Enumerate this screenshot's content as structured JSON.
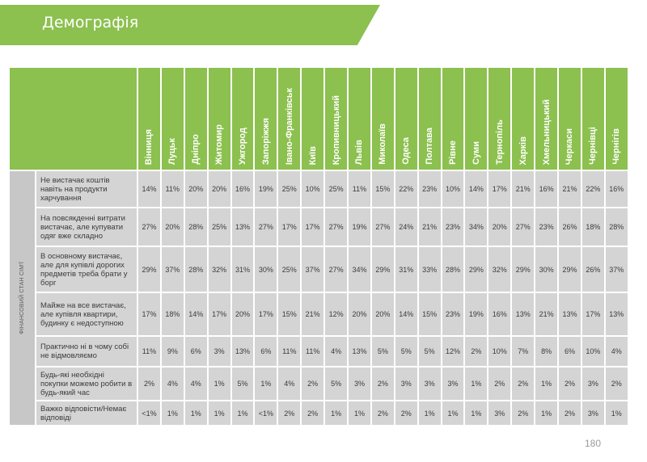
{
  "header": {
    "title": "Демографія"
  },
  "table": {
    "section_label": "ФІНАНСОВИЙ СТАН СІМ'Ї",
    "columns": [
      "Вінниця",
      "Луцьк",
      "Дніпро",
      "Житомир",
      "Ужгород",
      "Запоріжжя",
      "Івано-Франківськ",
      "Київ",
      "Кропивницький",
      "Львів",
      "Миколаїв",
      "Одеса",
      "Полтава",
      "Рівне",
      "Суми",
      "Тернопіль",
      "Харків",
      "Хмельницький",
      "Черкаси",
      "Чернівці",
      "Чернігів"
    ],
    "rows": [
      {
        "label": "Не вистачає коштів навіть на продукти харчування",
        "values": [
          "14%",
          "11%",
          "20%",
          "20%",
          "16%",
          "19%",
          "25%",
          "10%",
          "25%",
          "11%",
          "15%",
          "22%",
          "23%",
          "10%",
          "14%",
          "17%",
          "21%",
          "16%",
          "21%",
          "22%",
          "16%"
        ]
      },
      {
        "label": "На повсякденні витрати вистачає, але купувати одяг вже складно",
        "values": [
          "27%",
          "20%",
          "28%",
          "25%",
          "13%",
          "27%",
          "17%",
          "17%",
          "27%",
          "19%",
          "27%",
          "24%",
          "21%",
          "23%",
          "34%",
          "20%",
          "27%",
          "23%",
          "26%",
          "18%",
          "28%"
        ]
      },
      {
        "label": "В основному вистачає, але для купівлі дорогих предметів треба брати у борг",
        "values": [
          "29%",
          "37%",
          "28%",
          "32%",
          "31%",
          "30%",
          "25%",
          "37%",
          "27%",
          "34%",
          "29%",
          "31%",
          "33%",
          "28%",
          "29%",
          "32%",
          "29%",
          "30%",
          "29%",
          "26%",
          "37%"
        ]
      },
      {
        "label": "Майже на все вистачає, але купівля квартири, будинку є недоступною",
        "values": [
          "17%",
          "18%",
          "14%",
          "17%",
          "20%",
          "17%",
          "15%",
          "21%",
          "12%",
          "20%",
          "20%",
          "14%",
          "15%",
          "23%",
          "19%",
          "16%",
          "13%",
          "21%",
          "13%",
          "17%",
          "13%"
        ]
      },
      {
        "label": "Практично ні в чому собі не відмовляємо",
        "values": [
          "11%",
          "9%",
          "6%",
          "3%",
          "13%",
          "6%",
          "11%",
          "11%",
          "4%",
          "13%",
          "5%",
          "5%",
          "5%",
          "12%",
          "2%",
          "10%",
          "7%",
          "8%",
          "6%",
          "10%",
          "4%"
        ]
      },
      {
        "label": "Будь-які необхідні покупки можемо робити в будь-який час",
        "values": [
          "2%",
          "4%",
          "4%",
          "1%",
          "5%",
          "1%",
          "4%",
          "2%",
          "5%",
          "3%",
          "2%",
          "3%",
          "3%",
          "3%",
          "1%",
          "2%",
          "2%",
          "1%",
          "2%",
          "3%",
          "2%"
        ]
      },
      {
        "label": "Важко відповісти/Немає відповіді",
        "values": [
          "<1%",
          "1%",
          "1%",
          "1%",
          "1%",
          "<1%",
          "2%",
          "2%",
          "1%",
          "1%",
          "2%",
          "2%",
          "1%",
          "1%",
          "1%",
          "3%",
          "2%",
          "1%",
          "2%",
          "3%",
          "1%"
        ]
      }
    ]
  },
  "footer": {
    "page_number": "180"
  }
}
